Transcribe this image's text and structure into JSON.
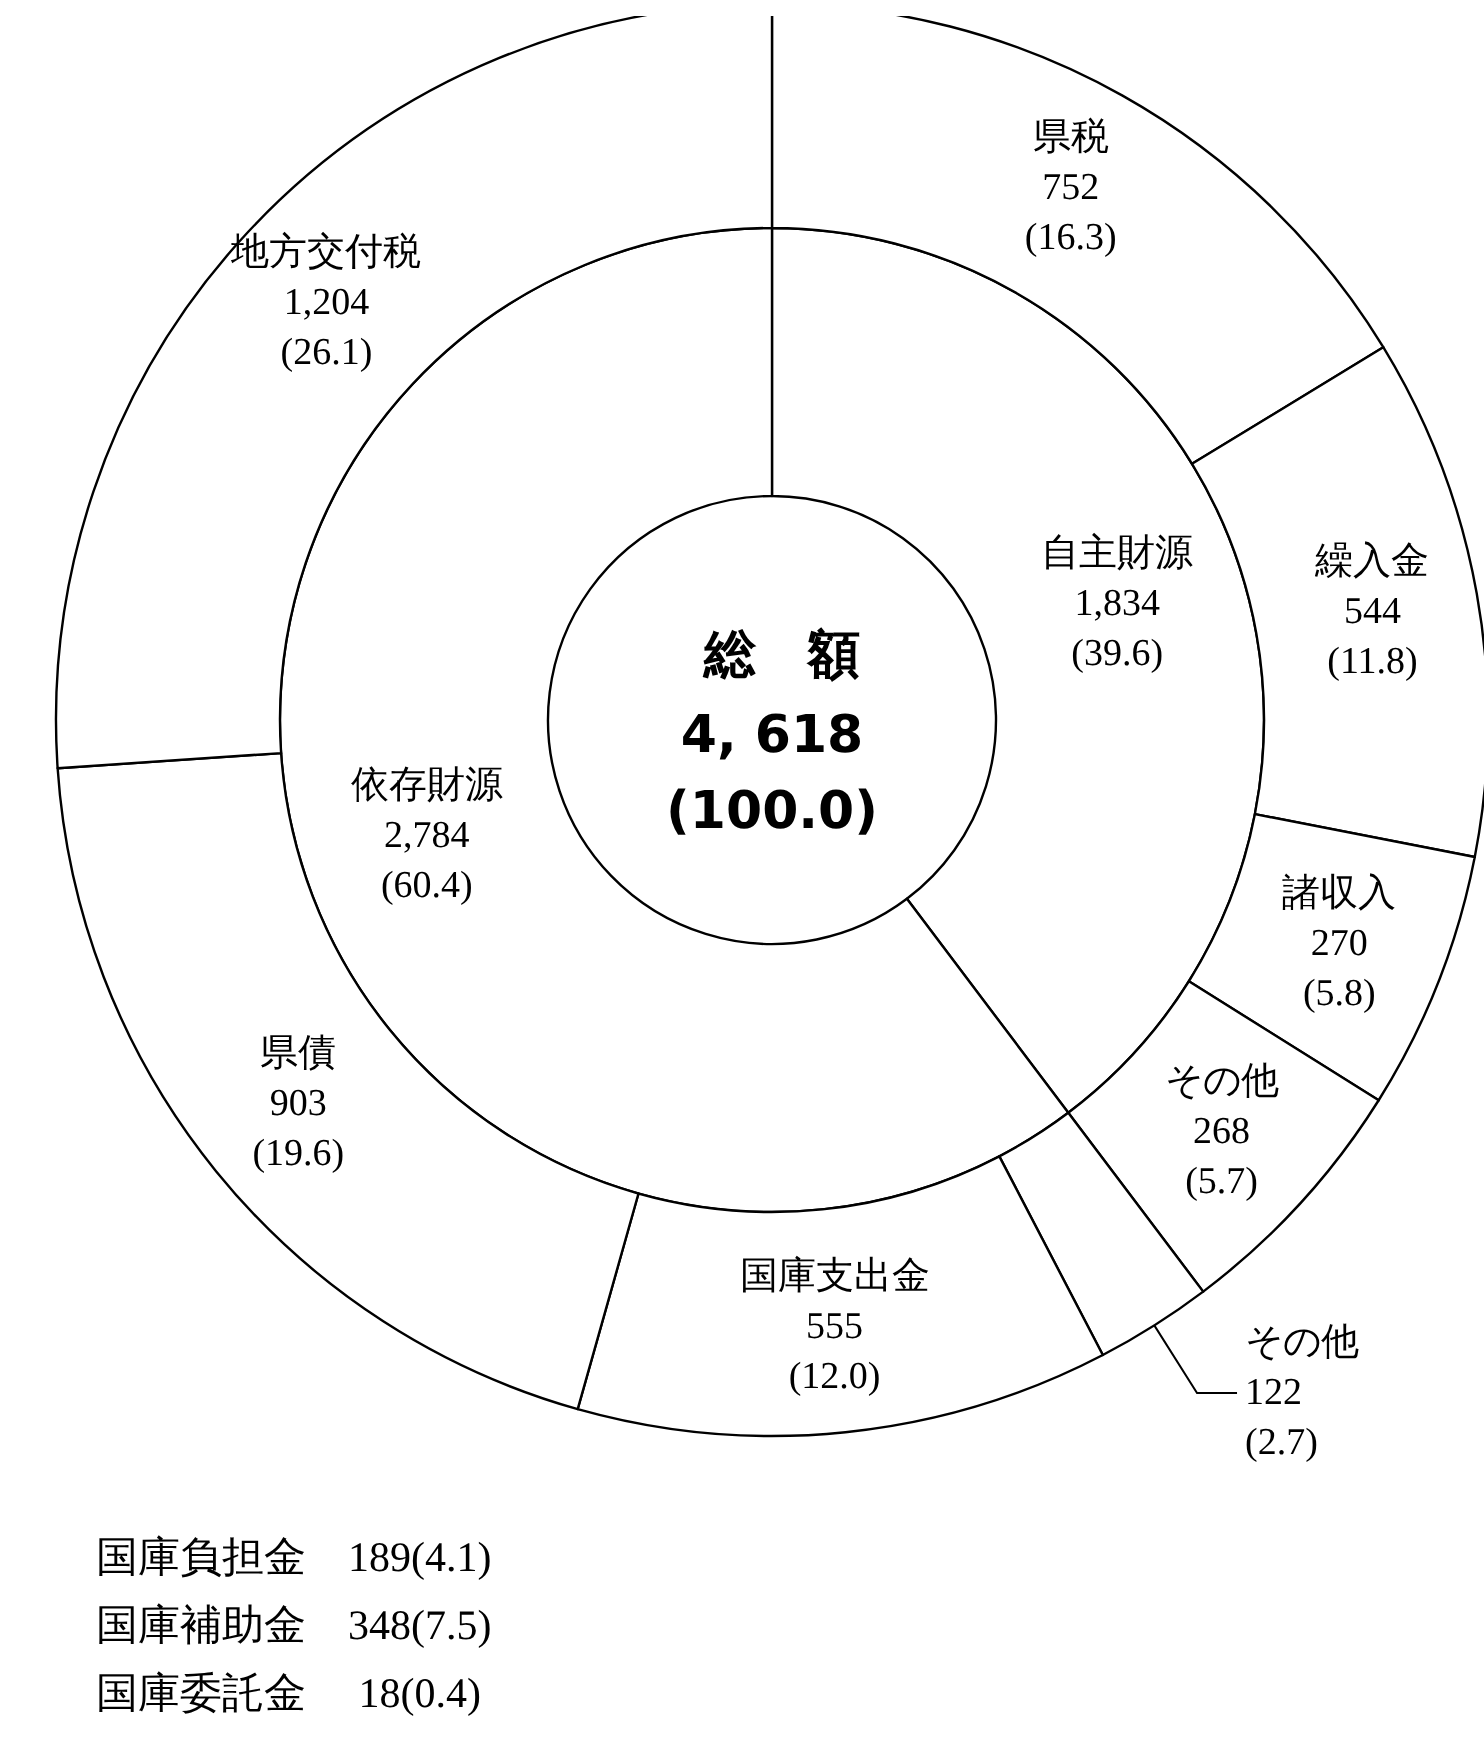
{
  "chart_data": [
    {
      "type": "donut",
      "title": "総　額",
      "annotations": [
        "4, 618",
        "(100.0)"
      ],
      "categories": [
        "自主財源",
        "依存財源"
      ],
      "values": [
        1834,
        2784
      ],
      "value_labels": [
        "1,834\n(39.6)",
        "2,784\n(60.4)"
      ],
      "colors": [
        "#ffffff",
        "#ffffff"
      ],
      "legend": false
    },
    {
      "type": "donut",
      "annotations": [
        "国庫負担金　189(4.1)",
        "国庫補助金　348(7.5)",
        "国庫委託金　 18(0.4)"
      ],
      "categories": [
        "県税",
        "繰入金",
        "諸収入",
        "その他",
        "その他",
        "国庫支出金",
        "県債",
        "地方交付税"
      ],
      "values": [
        752,
        544,
        270,
        268,
        122,
        555,
        903,
        1204
      ],
      "value_labels": [
        "752\n(16.3)",
        "544\n(11.8)",
        "270\n(5.8)",
        "268\n(5.7)",
        "122\n(2.7)",
        "555\n(12.0)",
        "903\n(19.6)",
        "1,204\n(26.1)"
      ],
      "colors": [
        "#ffffff",
        "#ffffff",
        "#ffffff",
        "#ffffff",
        "#ffffff",
        "#ffffff",
        "#ffffff",
        "#ffffff"
      ],
      "legend": false
    }
  ]
}
